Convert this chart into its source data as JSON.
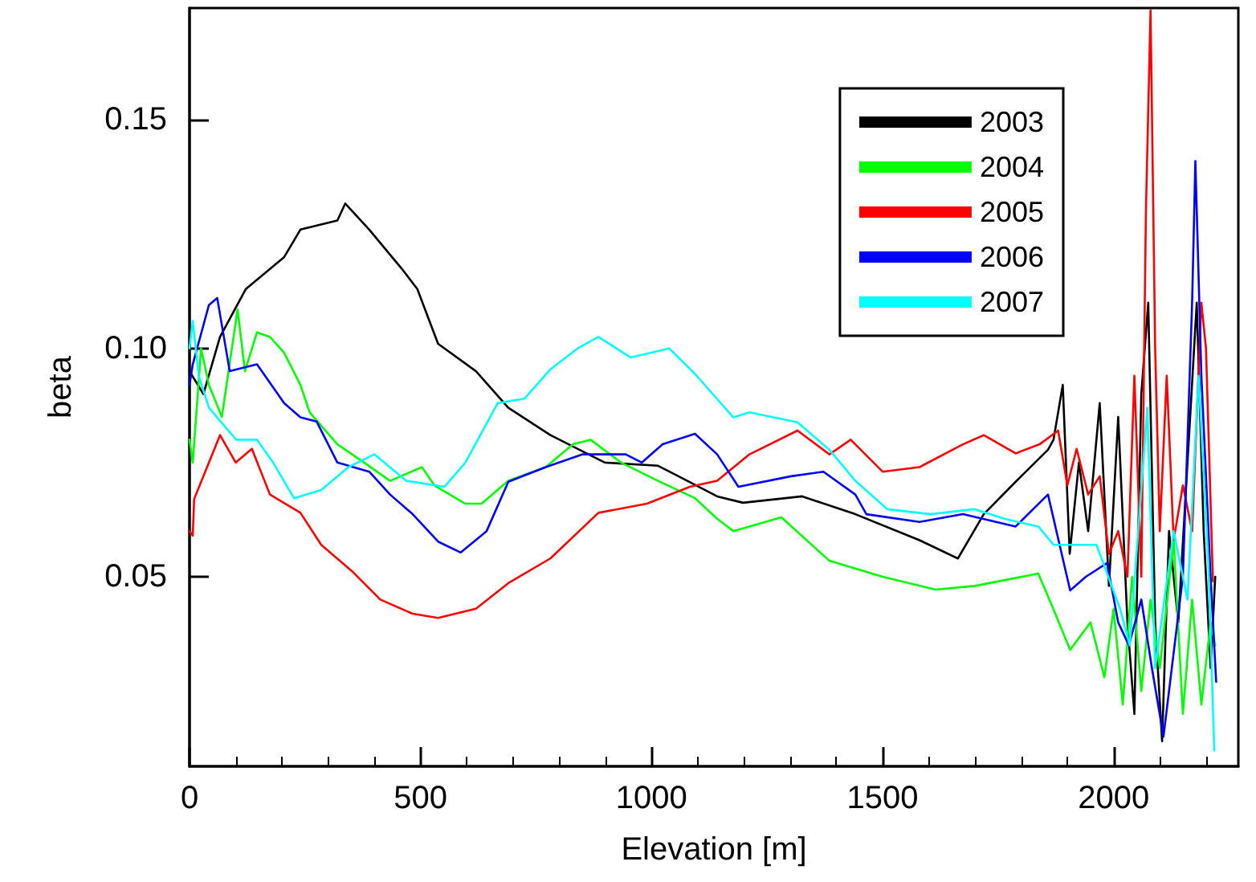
{
  "chart_data": {
    "type": "line",
    "xlabel": "Elevation [m]",
    "ylabel": "beta",
    "xlim": [
      0,
      2270
    ],
    "ylim": [
      0.0085,
      0.1745
    ],
    "xticks": [
      0,
      500,
      1000,
      1500,
      2000
    ],
    "yticks": [
      {
        "value": 0.05,
        "label": "0.05"
      },
      {
        "value": 0.1,
        "label": "0.10"
      },
      {
        "value": 0.15,
        "label": "0.15"
      }
    ],
    "grid": false,
    "legend": "top right",
    "marker": "none",
    "line_style": "solid",
    "series": [
      {
        "name": "2003",
        "color": "#000000",
        "x": [
          0,
          30,
          66,
          122,
          205,
          240,
          320,
          337,
          389,
          458,
          493,
          538,
          620,
          690,
          781,
          899,
          1014,
          1049,
          1142,
          1198,
          1326,
          1441,
          1580,
          1663,
          1719,
          1788,
          1858,
          1870,
          1890,
          1905,
          1925,
          1945,
          1970,
          1990,
          2010,
          2030,
          2045,
          2060,
          2075,
          2090,
          2105,
          2120,
          2140,
          2160,
          2180,
          2195,
          2210,
          2220
        ],
        "values": [
          0.095,
          0.09,
          0.1025,
          0.113,
          0.12,
          0.126,
          0.128,
          0.1317,
          0.126,
          0.1176,
          0.113,
          0.101,
          0.095,
          0.087,
          0.081,
          0.075,
          0.0743,
          0.0725,
          0.0676,
          0.0662,
          0.0676,
          0.0637,
          0.058,
          0.054,
          0.0637,
          0.0708,
          0.0778,
          0.08,
          0.092,
          0.055,
          0.075,
          0.06,
          0.088,
          0.048,
          0.085,
          0.04,
          0.02,
          0.09,
          0.11,
          0.04,
          0.014,
          0.06,
          0.04,
          0.075,
          0.11,
          0.06,
          0.03,
          0.05
        ]
      },
      {
        "name": "2004",
        "color": "#00ff00",
        "x": [
          0,
          7,
          25,
          42,
          70,
          104,
          120,
          146,
          174,
          205,
          240,
          260,
          320,
          378,
          434,
          503,
          530,
          597,
          632,
          690,
          771,
          830,
          868,
          934,
          1014,
          1094,
          1142,
          1177,
          1281,
          1385,
          1500,
          1615,
          1700,
          1837,
          1871,
          1906,
          1950,
          1980,
          2000,
          2020,
          2040,
          2060,
          2080,
          2100,
          2130,
          2150,
          2170,
          2190,
          2210,
          2220
        ],
        "values": [
          0.08,
          0.075,
          0.1,
          0.092,
          0.085,
          0.1085,
          0.095,
          0.1035,
          0.1025,
          0.099,
          0.092,
          0.086,
          0.079,
          0.075,
          0.071,
          0.074,
          0.07,
          0.066,
          0.066,
          0.071,
          0.074,
          0.079,
          0.08,
          0.075,
          0.071,
          0.0672,
          0.0627,
          0.06,
          0.063,
          0.0535,
          0.05,
          0.0472,
          0.048,
          0.0507,
          0.0426,
          0.034,
          0.04,
          0.028,
          0.043,
          0.022,
          0.05,
          0.025,
          0.045,
          0.03,
          0.058,
          0.02,
          0.045,
          0.022,
          0.04,
          0.035
        ]
      },
      {
        "name": "2005",
        "color": "#ff0000",
        "x": [
          0,
          7,
          10,
          66,
          100,
          135,
          174,
          240,
          285,
          354,
          413,
          483,
          538,
          620,
          690,
          781,
          885,
          990,
          1083,
          1142,
          1212,
          1316,
          1385,
          1431,
          1500,
          1580,
          1674,
          1719,
          1788,
          1840,
          1880,
          1900,
          1920,
          1945,
          1970,
          1990,
          2010,
          2030,
          2045,
          2060,
          2070,
          2080,
          2090,
          2100,
          2115,
          2130,
          2150,
          2170,
          2190,
          2200,
          2215
        ],
        "values": [
          0.06,
          0.059,
          0.067,
          0.081,
          0.075,
          0.078,
          0.068,
          0.064,
          0.057,
          0.051,
          0.045,
          0.0419,
          0.041,
          0.043,
          0.0486,
          0.054,
          0.064,
          0.066,
          0.0697,
          0.071,
          0.0768,
          0.082,
          0.0768,
          0.08,
          0.073,
          0.074,
          0.079,
          0.081,
          0.077,
          0.079,
          0.082,
          0.07,
          0.078,
          0.068,
          0.072,
          0.055,
          0.06,
          0.05,
          0.094,
          0.05,
          0.13,
          0.174,
          0.1,
          0.06,
          0.094,
          0.058,
          0.07,
          0.06,
          0.11,
          0.1,
          0.049
        ]
      },
      {
        "name": "2006",
        "color": "#0000ff",
        "x": [
          0,
          7,
          42,
          60,
          87,
          146,
          205,
          240,
          275,
          320,
          389,
          434,
          483,
          538,
          587,
          643,
          690,
          771,
          851,
          944,
          979,
          1024,
          1094,
          1142,
          1188,
          1302,
          1372,
          1441,
          1465,
          1580,
          1674,
          1788,
          1858,
          1906,
          1940,
          1986,
          2010,
          2033,
          2060,
          2083,
          2108,
          2150,
          2170,
          2177,
          2190,
          2210,
          2222
        ],
        "values": [
          0.092,
          0.0965,
          0.1095,
          0.111,
          0.095,
          0.0965,
          0.088,
          0.0849,
          0.084,
          0.075,
          0.073,
          0.068,
          0.0637,
          0.0577,
          0.0553,
          0.06,
          0.0708,
          0.074,
          0.0768,
          0.0768,
          0.075,
          0.079,
          0.0813,
          0.0768,
          0.0697,
          0.072,
          0.073,
          0.068,
          0.0637,
          0.062,
          0.0637,
          0.061,
          0.068,
          0.047,
          0.05,
          0.053,
          0.04,
          0.035,
          0.045,
          0.03,
          0.015,
          0.05,
          0.11,
          0.141,
          0.094,
          0.05,
          0.027
        ]
      },
      {
        "name": "2007",
        "color": "#00ffff",
        "x": [
          0,
          7,
          20,
          42,
          101,
          146,
          181,
          226,
          285,
          344,
          400,
          469,
          552,
          597,
          667,
          725,
          781,
          840,
          885,
          955,
          1038,
          1094,
          1177,
          1212,
          1316,
          1385,
          1441,
          1510,
          1604,
          1698,
          1767,
          1837,
          1870,
          1963,
          2014,
          2035,
          2073,
          2090,
          2130,
          2160,
          2184,
          2205,
          2218
        ],
        "values": [
          0.1,
          0.106,
          0.094,
          0.087,
          0.08,
          0.08,
          0.075,
          0.0672,
          0.069,
          0.074,
          0.0768,
          0.071,
          0.0697,
          0.075,
          0.088,
          0.089,
          0.0954,
          0.1,
          0.1025,
          0.098,
          0.1,
          0.0944,
          0.0849,
          0.086,
          0.0838,
          0.0778,
          0.071,
          0.0648,
          0.0637,
          0.0648,
          0.0626,
          0.061,
          0.057,
          0.057,
          0.043,
          0.035,
          0.087,
          0.03,
          0.06,
          0.045,
          0.094,
          0.053,
          0.012
        ]
      }
    ]
  }
}
